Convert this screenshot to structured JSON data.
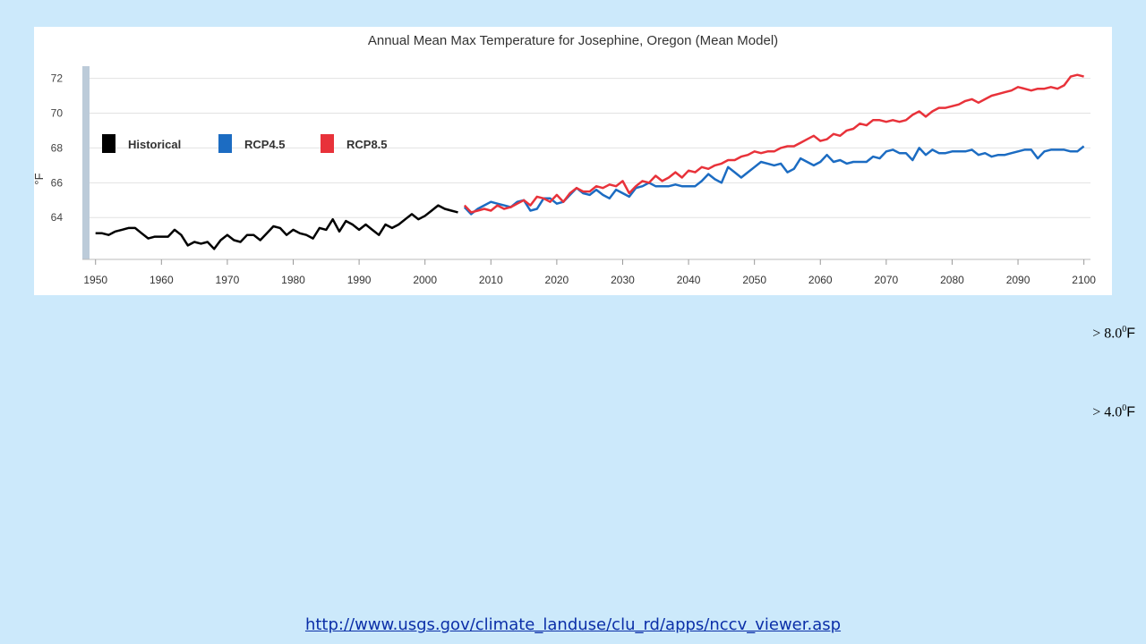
{
  "chart_data": {
    "type": "line",
    "title": "Annual Mean Max Temperature for Josephine, Oregon (Mean Model)",
    "ylabel": "°F",
    "xlabel": "",
    "xlim": [
      1948,
      2101
    ],
    "ylim": [
      61.7,
      72.8
    ],
    "xticks": [
      1950,
      1960,
      1970,
      1980,
      1990,
      2000,
      2010,
      2020,
      2030,
      2040,
      2050,
      2060,
      2070,
      2080,
      2090,
      2100
    ],
    "yticks": [
      64,
      66,
      68,
      70,
      72
    ],
    "grid": true,
    "legend": "top-left",
    "series": [
      {
        "name": "Historical",
        "color": "#000000",
        "x_start": 1950,
        "values": [
          63.1,
          63.1,
          63.0,
          63.2,
          63.3,
          63.4,
          63.4,
          63.1,
          62.8,
          62.9,
          62.9,
          62.9,
          63.3,
          63.0,
          62.4,
          62.6,
          62.5,
          62.6,
          62.2,
          62.7,
          63.0,
          62.7,
          62.6,
          63.0,
          63.0,
          62.7,
          63.1,
          63.5,
          63.4,
          63.0,
          63.3,
          63.1,
          63.0,
          62.8,
          63.4,
          63.3,
          63.9,
          63.2,
          63.8,
          63.6,
          63.3,
          63.6,
          63.3,
          63.0,
          63.6,
          63.4,
          63.6,
          63.9,
          64.2,
          63.9,
          64.1,
          64.4,
          64.7,
          64.5,
          64.4,
          64.3
        ]
      },
      {
        "name": "RCP4.5",
        "color": "#1c6cc2",
        "x_start": 2006,
        "values": [
          64.6,
          64.2,
          64.5,
          64.7,
          64.9,
          64.8,
          64.7,
          64.6,
          64.9,
          65.0,
          64.4,
          64.5,
          65.1,
          65.1,
          64.8,
          64.9,
          65.3,
          65.7,
          65.4,
          65.3,
          65.6,
          65.3,
          65.1,
          65.6,
          65.4,
          65.2,
          65.7,
          65.8,
          66.0,
          65.8,
          65.8,
          65.8,
          65.9,
          65.8,
          65.8,
          65.8,
          66.1,
          66.5,
          66.2,
          66.0,
          66.9,
          66.6,
          66.3,
          66.6,
          66.9,
          67.2,
          67.1,
          67.0,
          67.1,
          66.6,
          66.8,
          67.4,
          67.2,
          67.0,
          67.2,
          67.6,
          67.2,
          67.3,
          67.1,
          67.2,
          67.2,
          67.2,
          67.5,
          67.4,
          67.8,
          67.9,
          67.7,
          67.7,
          67.3,
          68.0,
          67.6,
          67.9,
          67.7,
          67.7,
          67.8,
          67.8,
          67.8,
          67.9,
          67.6,
          67.7,
          67.5,
          67.6,
          67.6,
          67.7,
          67.8,
          67.9,
          67.9,
          67.4,
          67.8,
          67.9,
          67.9,
          67.9,
          67.8,
          67.8,
          68.1
        ]
      },
      {
        "name": "RCP8.5",
        "color": "#e8323a",
        "x_start": 2006,
        "values": [
          64.7,
          64.3,
          64.4,
          64.5,
          64.4,
          64.7,
          64.5,
          64.6,
          64.8,
          65.0,
          64.7,
          65.2,
          65.1,
          64.9,
          65.3,
          64.9,
          65.4,
          65.7,
          65.5,
          65.5,
          65.8,
          65.7,
          65.9,
          65.8,
          66.1,
          65.4,
          65.8,
          66.1,
          66.0,
          66.4,
          66.1,
          66.3,
          66.6,
          66.3,
          66.7,
          66.6,
          66.9,
          66.8,
          67.0,
          67.1,
          67.3,
          67.3,
          67.5,
          67.6,
          67.8,
          67.7,
          67.8,
          67.8,
          68.0,
          68.1,
          68.1,
          68.3,
          68.5,
          68.7,
          68.4,
          68.5,
          68.8,
          68.7,
          69.0,
          69.1,
          69.4,
          69.3,
          69.6,
          69.6,
          69.5,
          69.6,
          69.5,
          69.6,
          69.9,
          70.1,
          69.8,
          70.1,
          70.3,
          70.3,
          70.4,
          70.5,
          70.7,
          70.8,
          70.6,
          70.8,
          71.0,
          71.1,
          71.2,
          71.3,
          71.5,
          71.4,
          71.3,
          71.4,
          71.4,
          71.5,
          71.4,
          71.6,
          72.1,
          72.2,
          72.1
        ]
      }
    ]
  },
  "annotations": {
    "a8_value": "> 8.0",
    "a8_exp": "0",
    "a8_unit": "F",
    "a4_value": "> 4.0",
    "a4_exp": "0",
    "a4_unit": "F"
  },
  "source": {
    "url_text": "http://www.usgs.gov/climate_landuse/clu_rd/apps/nccv_viewer.asp"
  }
}
